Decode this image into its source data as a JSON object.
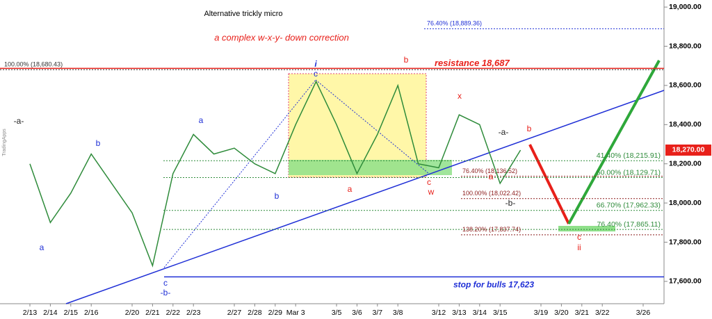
{
  "chart_data": {
    "type": "line",
    "title": "Alternative trickly micro",
    "subtitle": "a complex w-x-y- down correction",
    "source": "TradingApps",
    "categories": [
      "2/13",
      "2/14",
      "2/15",
      "2/16",
      null,
      "2/20",
      "2/21",
      "2/22",
      "2/23",
      null,
      "2/27",
      "2/28",
      "2/29",
      "Mar 3",
      null,
      "3/5",
      "3/6",
      "3/7",
      "3/8",
      null,
      "3/12",
      "3/13",
      "3/14",
      "3/15",
      null,
      "3/19",
      "3/20",
      "3/21",
      "3/22",
      null,
      "3/26"
    ],
    "series": [
      {
        "color": "#2e8b3a",
        "values": [
          18200,
          17900,
          18050,
          18250,
          18100,
          17950,
          17680,
          18150,
          18350,
          18250,
          18280,
          18200,
          18150,
          18400,
          18620,
          18400,
          18150,
          18350,
          18600,
          18200,
          18180,
          18450,
          18400,
          18100,
          18270,
          null,
          null,
          null,
          null,
          null,
          null
        ]
      }
    ],
    "ylim": [
      17486,
      19036
    ],
    "yticks": [
      {
        "value": 17600,
        "label": "17,600.00"
      },
      {
        "value": 17800,
        "label": "17,800.00"
      },
      {
        "value": 18000,
        "label": "18,000.00"
      },
      {
        "value": 18200,
        "label": "18,200.00"
      },
      {
        "value": 18400,
        "label": "18,400.00"
      },
      {
        "value": 18600,
        "label": "18,600.00"
      },
      {
        "value": 18800,
        "label": "18,800.00"
      },
      {
        "value": 19000,
        "label": "19,000.00"
      }
    ],
    "last_price": {
      "value": 18270,
      "label": "18,270.00",
      "color": "#e8201a"
    },
    "resistance": {
      "value": 18687,
      "label": "resistance 18,687",
      "color": "#e8201a"
    },
    "stop": {
      "value": 17623,
      "label": "stop for bulls 17,623",
      "color": "#1f2fd6"
    },
    "fib_levels": [
      {
        "value": 18889.36,
        "label": "76.40% (18,889.36)",
        "color": "#1f2fd6"
      },
      {
        "value": 18680.43,
        "label": "100.00% (18,680.43)",
        "color": "#333333"
      },
      {
        "value": 18215.91,
        "label": "41.40% (18,215.91)",
        "color": "#2e8b3a"
      },
      {
        "value": 18129.71,
        "label": "50.00% (18,129.71)",
        "color": "#2e8b3a"
      },
      {
        "value": 17962.33,
        "label": "66.70% (17,962.33)",
        "color": "#2e8b3a"
      },
      {
        "value": 17865.11,
        "label": "76.40% (17,865.11)",
        "color": "#2e8b3a"
      },
      {
        "value": 18136.52,
        "label": "76.40% (18,136.52)",
        "color": "#8b1a1a"
      },
      {
        "value": 18022.42,
        "label": "100.00% (18,022.42)",
        "color": "#8b1a1a"
      },
      {
        "value": 17837.74,
        "label": "138.20% (17,837.74)",
        "color": "#8b1a1a"
      }
    ],
    "annotations": [
      {
        "text": "-a-",
        "color": "#222222"
      },
      {
        "text": "a",
        "color": "#1f2fd6"
      },
      {
        "text": "b",
        "color": "#1f2fd6"
      },
      {
        "text": "a",
        "color": "#1f2fd6"
      },
      {
        "text": "c",
        "color": "#1f2fd6"
      },
      {
        "text": "-b-",
        "color": "#1f2fd6"
      },
      {
        "text": "b",
        "color": "#1f2fd6"
      },
      {
        "text": "i",
        "color": "#1f2fd6"
      },
      {
        "text": "c",
        "color": "#1f2fd6"
      },
      {
        "text": "a",
        "color": "#e8201a"
      },
      {
        "text": "b",
        "color": "#e8201a"
      },
      {
        "text": "c",
        "color": "#e8201a"
      },
      {
        "text": "w",
        "color": "#e8201a"
      },
      {
        "text": "x",
        "color": "#e8201a"
      },
      {
        "text": "-a-",
        "color": "#222222"
      },
      {
        "text": "a",
        "color": "#e8201a"
      },
      {
        "text": "b",
        "color": "#e8201a"
      },
      {
        "text": "-b-",
        "color": "#222222"
      },
      {
        "text": "c",
        "color": "#e8201a"
      },
      {
        "text": "ii",
        "color": "#e8201a"
      }
    ]
  }
}
